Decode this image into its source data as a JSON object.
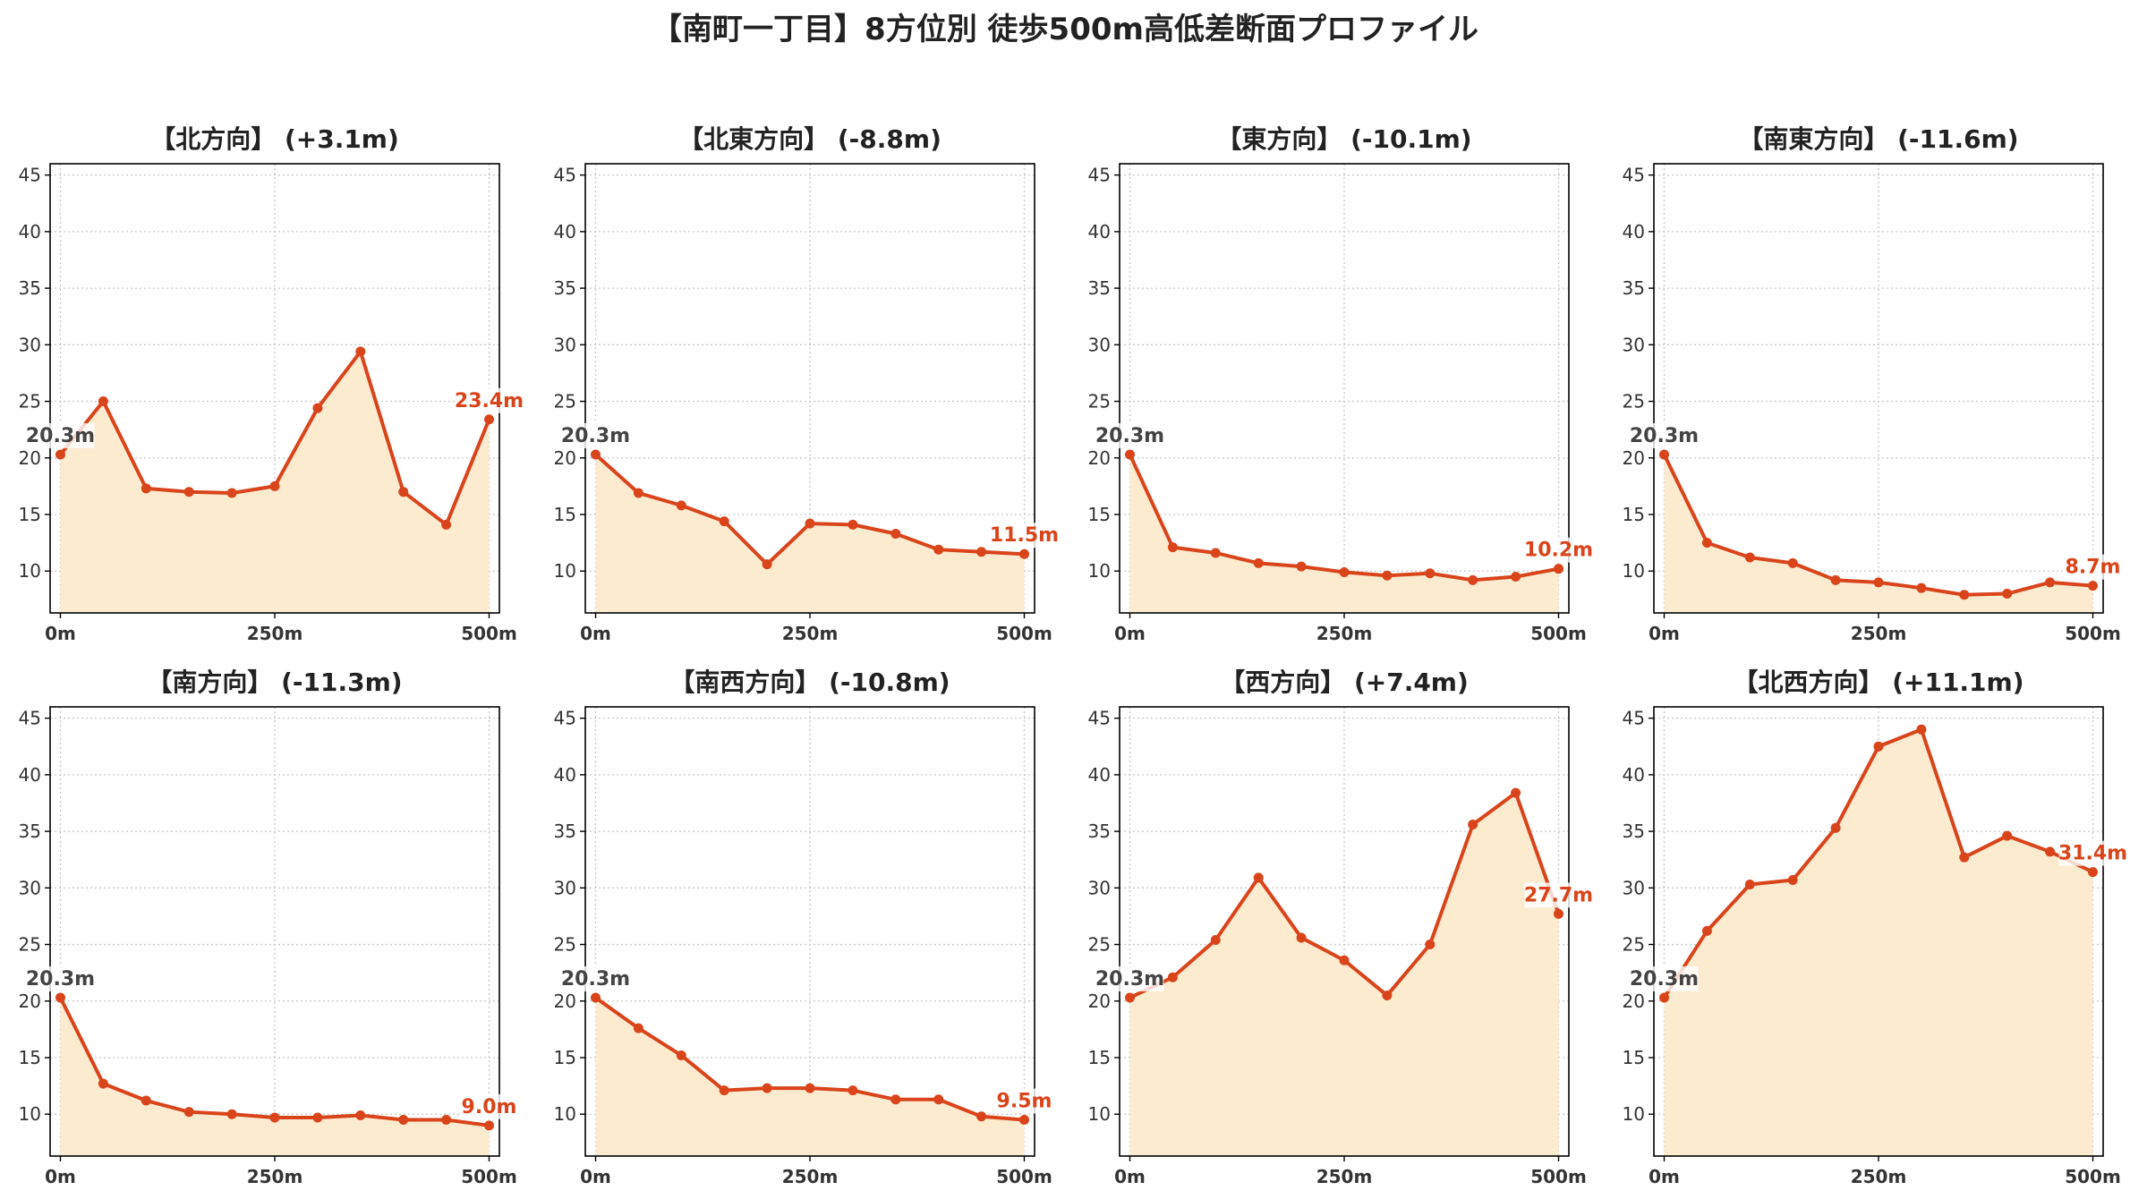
{
  "page": {
    "title": "【南町一丁目】8方位別 徒歩500m高低差断面プロファイル"
  },
  "style": {
    "line_color": "#d9441a",
    "fill_color": "#fdebd0",
    "start_label_color": "#444444",
    "end_label_color": "#d9441a",
    "grid_color": "#c8c8c8"
  },
  "chart_data": [
    {
      "type": "area",
      "title": "【北方向】 (+3.1m)",
      "x": [
        0,
        50,
        100,
        150,
        200,
        250,
        300,
        350,
        400,
        450,
        500
      ],
      "values": [
        20.3,
        25.0,
        17.3,
        17.0,
        16.9,
        17.5,
        24.4,
        29.4,
        17.0,
        14.1,
        23.4
      ],
      "start_label": "20.3m",
      "end_label": "23.4m",
      "xticks": [
        "0m",
        "250m",
        "500m"
      ],
      "xtick_values": [
        0,
        250,
        500
      ],
      "yticks": [
        10,
        15,
        20,
        25,
        30,
        35,
        40,
        45
      ],
      "ylim": [
        6.3,
        46
      ],
      "xlim": [
        -12,
        512
      ],
      "grid": true
    },
    {
      "type": "area",
      "title": "【北東方向】 (-8.8m)",
      "x": [
        0,
        50,
        100,
        150,
        200,
        250,
        300,
        350,
        400,
        450,
        500
      ],
      "values": [
        20.3,
        16.9,
        15.8,
        14.4,
        10.6,
        14.2,
        14.1,
        13.3,
        11.9,
        11.7,
        11.5
      ],
      "start_label": "20.3m",
      "end_label": "11.5m",
      "xticks": [
        "0m",
        "250m",
        "500m"
      ],
      "xtick_values": [
        0,
        250,
        500
      ],
      "yticks": [
        10,
        15,
        20,
        25,
        30,
        35,
        40,
        45
      ],
      "ylim": [
        6.3,
        46
      ],
      "xlim": [
        -12,
        512
      ],
      "grid": true
    },
    {
      "type": "area",
      "title": "【東方向】 (-10.1m)",
      "x": [
        0,
        50,
        100,
        150,
        200,
        250,
        300,
        350,
        400,
        450,
        500
      ],
      "values": [
        20.3,
        12.1,
        11.6,
        10.7,
        10.4,
        9.9,
        9.6,
        9.8,
        9.2,
        9.5,
        10.2
      ],
      "start_label": "20.3m",
      "end_label": "10.2m",
      "xticks": [
        "0m",
        "250m",
        "500m"
      ],
      "xtick_values": [
        0,
        250,
        500
      ],
      "yticks": [
        10,
        15,
        20,
        25,
        30,
        35,
        40,
        45
      ],
      "ylim": [
        6.3,
        46
      ],
      "xlim": [
        -12,
        512
      ],
      "grid": true
    },
    {
      "type": "area",
      "title": "【南東方向】 (-11.6m)",
      "x": [
        0,
        50,
        100,
        150,
        200,
        250,
        300,
        350,
        400,
        450,
        500
      ],
      "values": [
        20.3,
        12.5,
        11.2,
        10.7,
        9.2,
        9.0,
        8.5,
        7.9,
        8.0,
        9.0,
        8.7
      ],
      "start_label": "20.3m",
      "end_label": "8.7m",
      "xticks": [
        "0m",
        "250m",
        "500m"
      ],
      "xtick_values": [
        0,
        250,
        500
      ],
      "yticks": [
        10,
        15,
        20,
        25,
        30,
        35,
        40,
        45
      ],
      "ylim": [
        6.3,
        46
      ],
      "xlim": [
        -12,
        512
      ],
      "grid": true
    },
    {
      "type": "area",
      "title": "【南方向】 (-11.3m)",
      "x": [
        0,
        50,
        100,
        150,
        200,
        250,
        300,
        350,
        400,
        450,
        500
      ],
      "values": [
        20.3,
        12.7,
        11.2,
        10.2,
        10.0,
        9.7,
        9.7,
        9.9,
        9.5,
        9.5,
        9.0
      ],
      "start_label": "20.3m",
      "end_label": "9.0m",
      "xticks": [
        "0m",
        "250m",
        "500m"
      ],
      "xtick_values": [
        0,
        250,
        500
      ],
      "yticks": [
        10,
        15,
        20,
        25,
        30,
        35,
        40,
        45
      ],
      "ylim": [
        6.3,
        46
      ],
      "xlim": [
        -12,
        512
      ],
      "grid": true
    },
    {
      "type": "area",
      "title": "【南西方向】 (-10.8m)",
      "x": [
        0,
        50,
        100,
        150,
        200,
        250,
        300,
        350,
        400,
        450,
        500
      ],
      "values": [
        20.3,
        17.6,
        15.2,
        12.1,
        12.3,
        12.3,
        12.1,
        11.3,
        11.3,
        9.8,
        9.5
      ],
      "start_label": "20.3m",
      "end_label": "9.5m",
      "xticks": [
        "0m",
        "250m",
        "500m"
      ],
      "xtick_values": [
        0,
        250,
        500
      ],
      "yticks": [
        10,
        15,
        20,
        25,
        30,
        35,
        40,
        45
      ],
      "ylim": [
        6.3,
        46
      ],
      "xlim": [
        -12,
        512
      ],
      "grid": true
    },
    {
      "type": "area",
      "title": "【西方向】 (+7.4m)",
      "x": [
        0,
        50,
        100,
        150,
        200,
        250,
        300,
        350,
        400,
        450,
        500
      ],
      "values": [
        20.3,
        22.1,
        25.4,
        30.9,
        25.6,
        23.6,
        20.5,
        25.0,
        35.6,
        38.4,
        27.7
      ],
      "start_label": "20.3m",
      "end_label": "27.7m",
      "xticks": [
        "0m",
        "250m",
        "500m"
      ],
      "xtick_values": [
        0,
        250,
        500
      ],
      "yticks": [
        10,
        15,
        20,
        25,
        30,
        35,
        40,
        45
      ],
      "ylim": [
        6.3,
        46
      ],
      "xlim": [
        -12,
        512
      ],
      "grid": true
    },
    {
      "type": "area",
      "title": "【北西方向】 (+11.1m)",
      "x": [
        0,
        50,
        100,
        150,
        200,
        250,
        300,
        350,
        400,
        450,
        500
      ],
      "values": [
        20.3,
        26.2,
        30.3,
        30.7,
        35.3,
        42.5,
        44.0,
        32.7,
        34.6,
        33.2,
        31.4
      ],
      "start_label": "20.3m",
      "end_label": "31.4m",
      "xticks": [
        "0m",
        "250m",
        "500m"
      ],
      "xtick_values": [
        0,
        250,
        500
      ],
      "yticks": [
        10,
        15,
        20,
        25,
        30,
        35,
        40,
        45
      ],
      "ylim": [
        6.3,
        46
      ],
      "xlim": [
        -12,
        512
      ],
      "grid": true
    }
  ]
}
